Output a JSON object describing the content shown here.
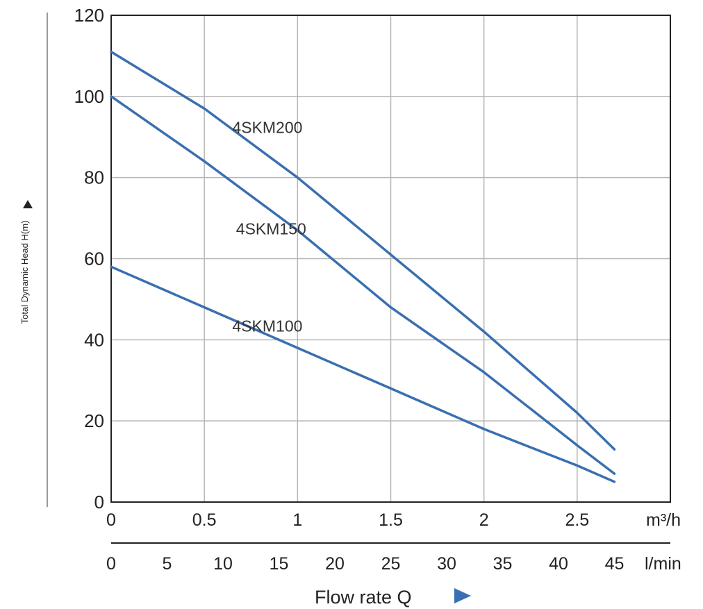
{
  "chart_data": {
    "type": "line",
    "title": "",
    "ylabel": "Total Dynamic Head H(m)",
    "xlabel": "Flow rate  Q",
    "ylim": [
      0,
      120
    ],
    "xlim": [
      0,
      3
    ],
    "yticks": [
      0,
      20,
      40,
      60,
      80,
      100,
      120
    ],
    "xaxis_primary": {
      "unit": "m³/h",
      "ticks": [
        0,
        0.5,
        1,
        1.5,
        2,
        2.5
      ],
      "tick_labels": [
        "0",
        "0.5",
        "1",
        "1.5",
        "2",
        "2.5"
      ]
    },
    "xaxis_secondary": {
      "unit": "l/min",
      "ticks": [
        0,
        5,
        10,
        15,
        20,
        25,
        30,
        35,
        40,
        45
      ],
      "tick_labels": [
        "0",
        "5",
        "10",
        "15",
        "20",
        "25",
        "30",
        "35",
        "40",
        "45"
      ]
    },
    "grid": true,
    "line_color": "#3a6fb0",
    "series": [
      {
        "name": "4SKM200",
        "x": [
          0,
          0.5,
          1.0,
          1.5,
          2.0,
          2.5,
          2.7
        ],
        "y": [
          111,
          97,
          80,
          61,
          42,
          22,
          13
        ]
      },
      {
        "name": "4SKM150",
        "x": [
          0,
          0.5,
          1.0,
          1.5,
          2.0,
          2.5,
          2.7
        ],
        "y": [
          100,
          84,
          67,
          48,
          32,
          14,
          7
        ]
      },
      {
        "name": "4SKM100",
        "x": [
          0,
          0.5,
          1.0,
          1.5,
          2.0,
          2.5,
          2.7
        ],
        "y": [
          58,
          48,
          38,
          28,
          18,
          9,
          5
        ]
      }
    ]
  }
}
